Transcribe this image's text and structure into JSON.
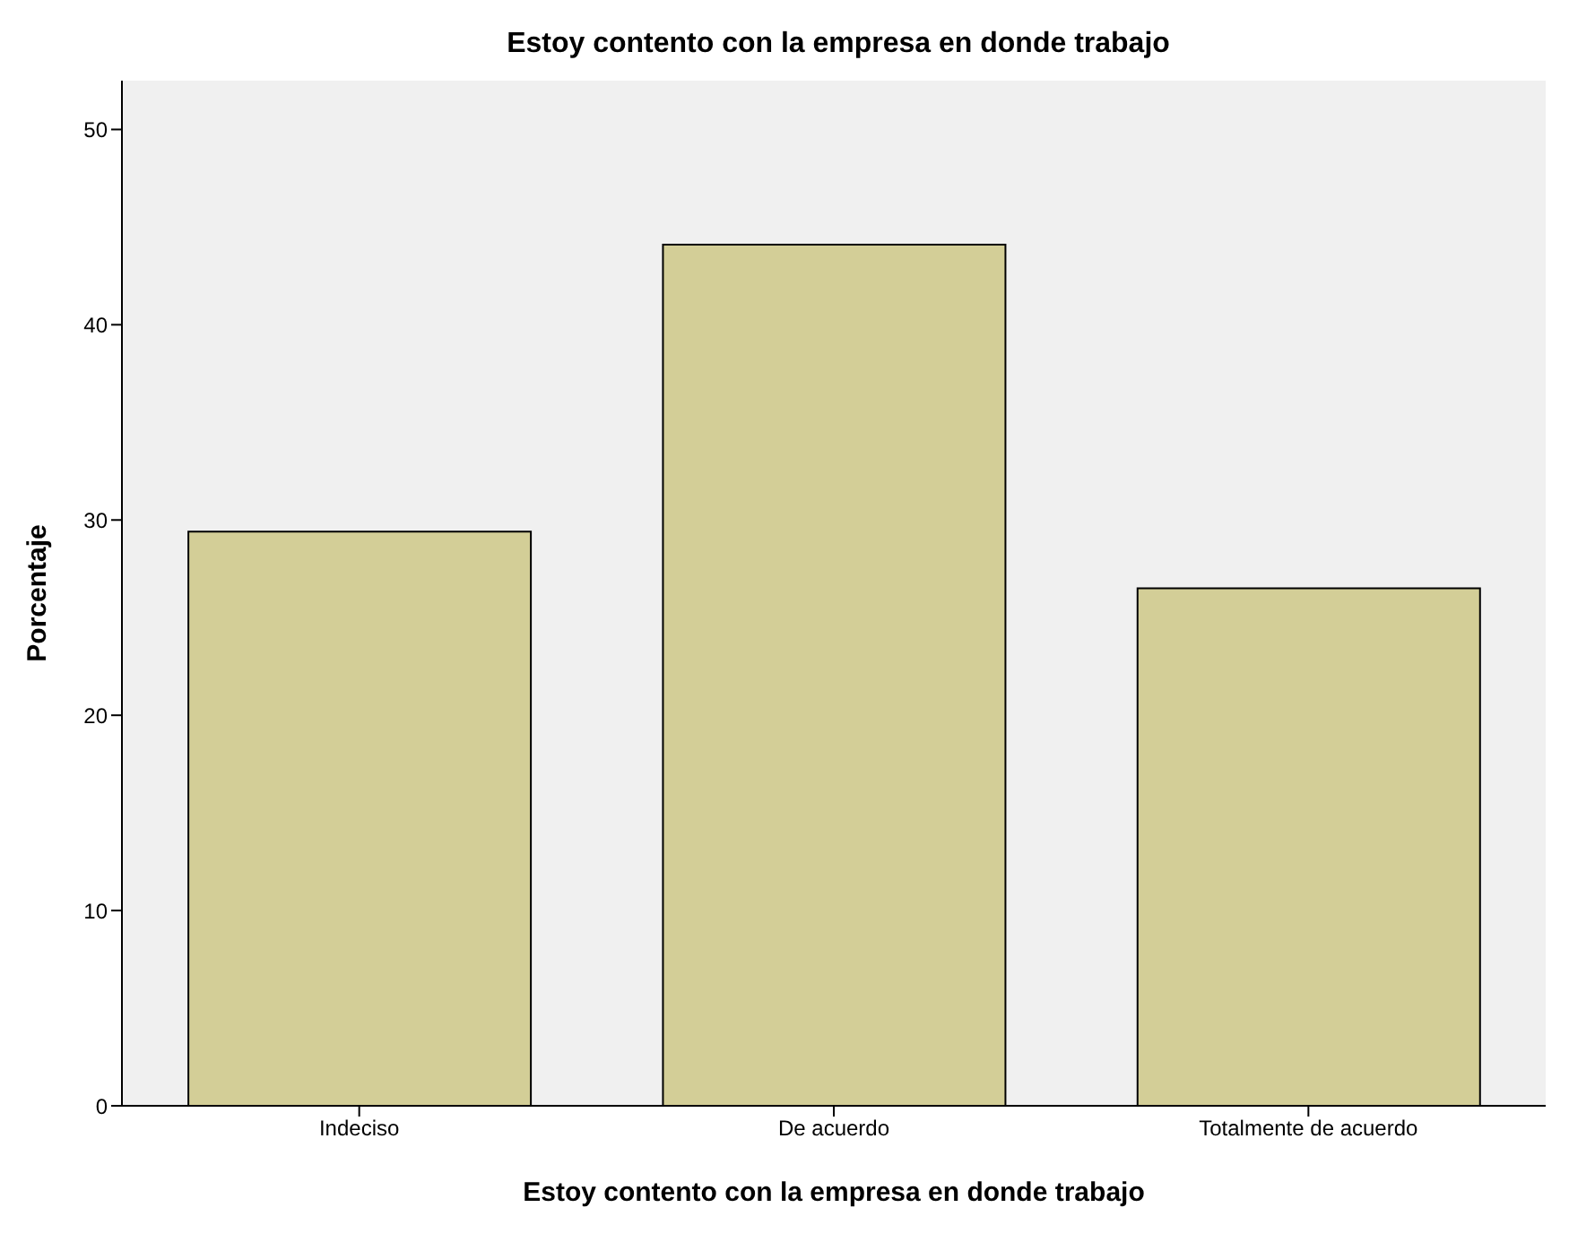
{
  "chart_data": {
    "type": "bar",
    "title": "Estoy contento con la empresa en donde trabajo",
    "xlabel": "Estoy contento con la empresa en donde trabajo",
    "ylabel": "Porcentaje",
    "categories": [
      "Indeciso",
      "De acuerdo",
      "Totalmente de acuerdo"
    ],
    "values": [
      29.4,
      44.1,
      26.5
    ],
    "color": "#d3ce97",
    "ylim": [
      0,
      52.5
    ],
    "yticks": [
      0,
      10,
      20,
      30,
      40,
      50
    ],
    "grid": false,
    "legend": false
  }
}
